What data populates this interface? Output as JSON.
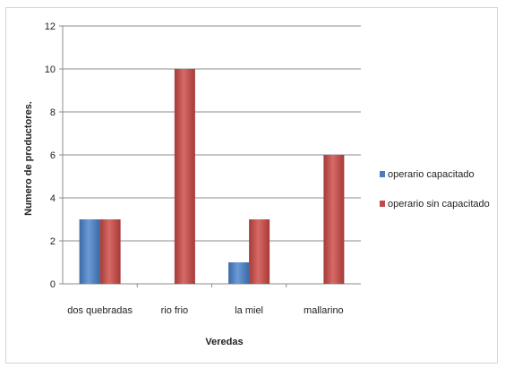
{
  "chart_data": {
    "type": "bar",
    "title": "",
    "xlabel": "Veredas",
    "ylabel": "Numero de productores.",
    "categories": [
      "dos quebradas",
      "rio frio",
      "la miel",
      "mallarino"
    ],
    "ylim": [
      0,
      12
    ],
    "yticks": [
      0,
      2,
      4,
      6,
      8,
      10,
      12
    ],
    "grid": true,
    "legend_position": "right",
    "series": [
      {
        "name": "operario capacitado",
        "color": "#4a7ebb",
        "values": [
          3,
          0,
          1,
          0
        ]
      },
      {
        "name": "operario sin capacitado",
        "color": "#be4b48",
        "values": [
          3,
          10,
          3,
          6
        ]
      }
    ]
  }
}
